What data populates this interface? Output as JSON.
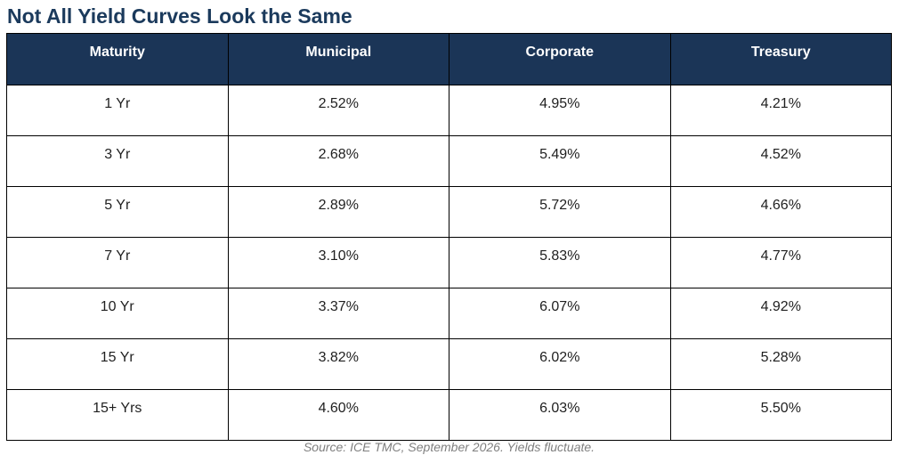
{
  "title": "Not All Yield Curves Look the Same",
  "source": "Source: ICE TMC, September 2026. Yields fluctuate.",
  "colors": {
    "header_background": "#1b3557",
    "title_text": "#1b3a5c",
    "source_text": "#7f7f7f"
  },
  "chart_data": {
    "type": "table",
    "title": "Not All Yield Curves Look the Same",
    "columns": [
      "Maturity",
      "Municipal",
      "Corporate",
      "Treasury"
    ],
    "rows": [
      [
        "1 Yr",
        "2.52%",
        "4.95%",
        "4.21%"
      ],
      [
        "3 Yr",
        "2.68%",
        "5.49%",
        "4.52%"
      ],
      [
        "5 Yr",
        "2.89%",
        "5.72%",
        "4.66%"
      ],
      [
        "7 Yr",
        "3.10%",
        "5.83%",
        "4.77%"
      ],
      [
        "10 Yr",
        "3.37%",
        "6.07%",
        "4.92%"
      ],
      [
        "15 Yr",
        "3.82%",
        "6.02%",
        "5.28%"
      ],
      [
        "15+ Yrs",
        "4.60%",
        "6.03%",
        "5.50%"
      ]
    ]
  }
}
